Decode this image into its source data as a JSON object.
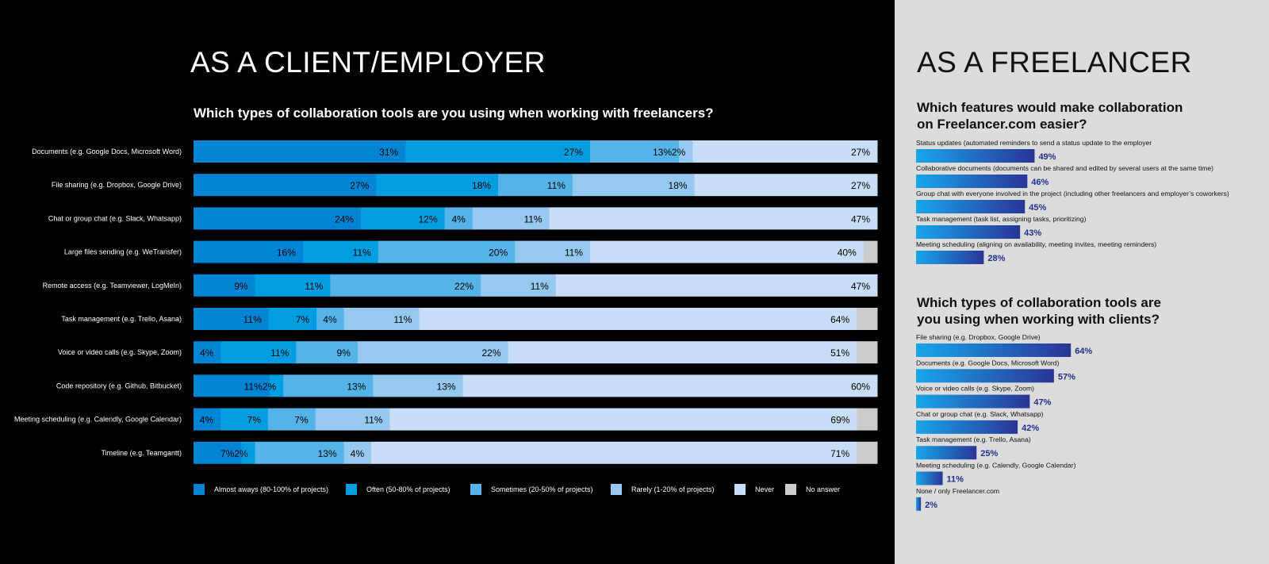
{
  "colors": {
    "almost_always": "#0085d4",
    "often": "#009ee0",
    "sometimes": "#56b3e8",
    "rarely": "#95c9ef",
    "never": "#c8def6",
    "no_answer": "#cccccc",
    "freelancer_label": "#1f2f8a",
    "freelancer_bar_start": "#18a6ea",
    "freelancer_bar_end": "#2a3596"
  },
  "client": {
    "heading": "AS A CLIENT/EMPLOYER",
    "question": "Which types of collaboration tools are you using when working with freelancers?"
  },
  "freelancer": {
    "heading": "AS A FREELANCER",
    "q1_line1": "Which features would make collaboration",
    "q1_line2": "on Freelancer.com easier?",
    "q2_line1": "Which types of collaboration tools are",
    "q2_line2": "you using when working with clients?"
  },
  "legend": [
    {
      "key": "almost_always",
      "label": "Almost aways (80-100% of projects)"
    },
    {
      "key": "often",
      "label": "Often (50-80% of projects)"
    },
    {
      "key": "sometimes",
      "label": "Sometimes (20-50% of projects)"
    },
    {
      "key": "rarely",
      "label": "Rarely (1-20% of projects)"
    },
    {
      "key": "never",
      "label": "Never"
    },
    {
      "key": "no_answer",
      "label": "No answer"
    }
  ],
  "chart_data": [
    {
      "type": "bar",
      "orientation": "horizontal",
      "stacked": true,
      "categories": [
        "Documents (e.g. Google Docs, Microsoft Word)",
        "File sharing (e.g. Dropbox, Google Drive)",
        "Chat or group chat (e.g. Slack, Whatsapp)",
        "Large files sending (e.g. WeTransfer)",
        "Remote access (e.g. Teamviewer, LogMeIn)",
        "Task management (e.g. Trello, Asana)",
        "Voice or video calls (e.g. Skype, Zoom)",
        "Code repository (e.g. Github, Bitbucket)",
        "Meeting scheduling (e.g. Calendly, Google Calendar)",
        "Timeline (e.g. Teamgantt)"
      ],
      "series": [
        {
          "name": "Almost aways (80-100% of projects)",
          "values": [
            31,
            27,
            24,
            16,
            9,
            11,
            4,
            11,
            4,
            7
          ]
        },
        {
          "name": "Often (50-80% of projects)",
          "values": [
            27,
            18,
            12,
            11,
            11,
            7,
            11,
            2,
            7,
            2
          ]
        },
        {
          "name": "Sometimes (20-50% of projects)",
          "values": [
            13,
            11,
            4,
            20,
            22,
            4,
            9,
            13,
            7,
            13
          ]
        },
        {
          "name": "Rarely (1-20% of projects)",
          "values": [
            2,
            18,
            11,
            11,
            11,
            11,
            22,
            13,
            11,
            4
          ]
        },
        {
          "name": "Never",
          "values": [
            27,
            27,
            47,
            40,
            47,
            64,
            51,
            60,
            69,
            71
          ]
        },
        {
          "name": "No answer",
          "values": [
            0,
            0,
            0,
            2,
            0,
            3,
            3,
            0,
            3,
            3
          ]
        }
      ],
      "xlim": [
        0,
        100
      ]
    },
    {
      "type": "bar",
      "orientation": "horizontal",
      "categories": [
        "Status updates (automated reminders to send a status update to the employer",
        "Collaborative documents (documents can be shared and edited by several users at the same time)",
        "Group chat with everyone involved in the project (including other freelancers and employer’s coworkers)",
        "Task management (task list, assigning tasks, prioritizing)",
        "Meeting scheduling (aligning on availability, meeting invites, meeting reminders)"
      ],
      "values": [
        49,
        46,
        45,
        43,
        28
      ],
      "labels": [
        "49%",
        "46%",
        "45%",
        "43%",
        "28%"
      ]
    },
    {
      "type": "bar",
      "orientation": "horizontal",
      "categories": [
        "File sharing (e.g. Dropbox, Google Drive)",
        "Documents (e.g. Google Docs, Microsoft Word)",
        "Voice or video calls (e.g. Skype, Zoom)",
        "Chat or group chat (e.g. Slack, Whatsapp)",
        "Task management (e.g. Trello, Asana)",
        "Meeting scheduling (e.g. Calendly, Google Calendar)",
        "None / only Freelancer.com"
      ],
      "values": [
        64,
        57,
        47,
        42,
        25,
        11,
        2
      ],
      "labels": [
        "64%",
        "57%",
        "47%",
        "42%",
        "25%",
        "11%",
        "2%"
      ]
    }
  ]
}
